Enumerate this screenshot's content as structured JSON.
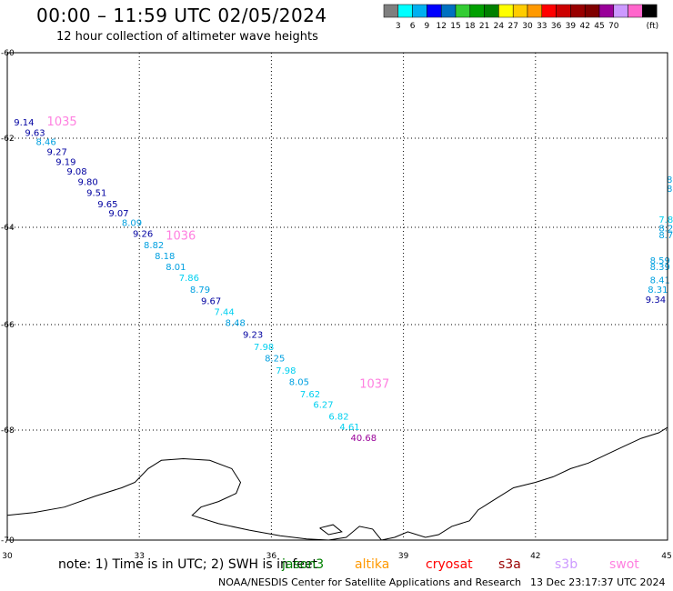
{
  "title": "00:00 – 11:59 UTC 02/05/2024",
  "subtitle": "12 hour collection of altimeter wave heights",
  "legend": {
    "colors": [
      "#7f7f7f",
      "#00ffff",
      "#00b0f0",
      "#0000ff",
      "#0070c0",
      "#33cc33",
      "#00a000",
      "#008000",
      "#ffff00",
      "#ffcc00",
      "#ff9900",
      "#ff0000",
      "#cc0000",
      "#990000",
      "#800000",
      "#990099",
      "#cc99ff",
      "#ff66cc",
      "#000000"
    ],
    "ticks": [
      "3",
      "6",
      "9",
      "12",
      "15",
      "18",
      "21",
      "24",
      "27",
      "30",
      "33",
      "36",
      "39",
      "42",
      "45",
      "70"
    ],
    "unit": "(ft)"
  },
  "axes": {
    "x_ticks": [
      "30",
      "33",
      "36",
      "39",
      "42",
      "45"
    ],
    "y_ticks": [
      "-60",
      "-62",
      "-64",
      "-66",
      "-68",
      "-70"
    ]
  },
  "map": {
    "lon_range": [
      30,
      45
    ],
    "lat_range": [
      -70,
      -60
    ],
    "y_ticks_lat": [
      -60,
      -62,
      -64,
      -66,
      -68,
      -70
    ],
    "x_ticks_lon": [
      30,
      33,
      36,
      39,
      42,
      45
    ]
  },
  "colors": {
    "darkblue": "#0000a0",
    "midblue": "#00a0e0",
    "cyan": "#00d0f0",
    "purple": "#990099",
    "pink": "#ff80e0"
  },
  "passes": [
    {
      "label": "1035",
      "lon": 30.9,
      "lat": -61.7
    },
    {
      "label": "1036",
      "lon": 33.6,
      "lat": -64.25
    },
    {
      "label": "1037",
      "lon": 38.0,
      "lat": -67.2
    }
  ],
  "wave_heights": [
    {
      "v": "9.14",
      "lon": 30.15,
      "lat": -61.7,
      "c": "darkblue"
    },
    {
      "v": "9.63",
      "lon": 30.4,
      "lat": -61.95,
      "c": "darkblue"
    },
    {
      "v": "8.46",
      "lon": 30.65,
      "lat": -62.15,
      "c": "midblue"
    },
    {
      "v": "9.27",
      "lon": 30.9,
      "lat": -62.38,
      "c": "darkblue"
    },
    {
      "v": "9.19",
      "lon": 31.1,
      "lat": -62.6,
      "c": "darkblue"
    },
    {
      "v": "9.08",
      "lon": 31.35,
      "lat": -62.82,
      "c": "darkblue"
    },
    {
      "v": "9.80",
      "lon": 31.6,
      "lat": -63.05,
      "c": "darkblue"
    },
    {
      "v": "9.51",
      "lon": 31.8,
      "lat": -63.3,
      "c": "darkblue"
    },
    {
      "v": "9.65",
      "lon": 32.05,
      "lat": -63.55,
      "c": "darkblue"
    },
    {
      "v": "9.07",
      "lon": 32.3,
      "lat": -63.75,
      "c": "darkblue"
    },
    {
      "v": "8.09",
      "lon": 32.6,
      "lat": -63.97,
      "c": "midblue"
    },
    {
      "v": "9.26",
      "lon": 32.85,
      "lat": -64.2,
      "c": "darkblue"
    },
    {
      "v": "8.82",
      "lon": 33.1,
      "lat": -64.43,
      "c": "midblue"
    },
    {
      "v": "8.18",
      "lon": 33.35,
      "lat": -64.65,
      "c": "midblue"
    },
    {
      "v": "8.01",
      "lon": 33.6,
      "lat": -64.88,
      "c": "midblue"
    },
    {
      "v": "7.86",
      "lon": 33.9,
      "lat": -65.1,
      "c": "cyan"
    },
    {
      "v": "8.79",
      "lon": 34.15,
      "lat": -65.35,
      "c": "midblue"
    },
    {
      "v": "9.67",
      "lon": 34.4,
      "lat": -65.58,
      "c": "darkblue"
    },
    {
      "v": "7.44",
      "lon": 34.7,
      "lat": -65.8,
      "c": "cyan"
    },
    {
      "v": "8.48",
      "lon": 34.95,
      "lat": -66.03,
      "c": "midblue"
    },
    {
      "v": "9.23",
      "lon": 35.35,
      "lat": -66.25,
      "c": "darkblue"
    },
    {
      "v": "7.98",
      "lon": 35.6,
      "lat": -66.48,
      "c": "cyan"
    },
    {
      "v": "8.25",
      "lon": 35.85,
      "lat": -66.7,
      "c": "midblue"
    },
    {
      "v": "7.98",
      "lon": 36.1,
      "lat": -66.93,
      "c": "cyan"
    },
    {
      "v": "8.05",
      "lon": 36.4,
      "lat": -67.15,
      "c": "midblue"
    },
    {
      "v": "7.62",
      "lon": 36.65,
      "lat": -67.38,
      "c": "cyan"
    },
    {
      "v": "6.27",
      "lon": 36.95,
      "lat": -67.58,
      "c": "cyan"
    },
    {
      "v": "6.82",
      "lon": 37.3,
      "lat": -67.8,
      "c": "cyan"
    },
    {
      "v": "4.61",
      "lon": 37.55,
      "lat": -68.0,
      "c": "cyan"
    },
    {
      "v": "40.68",
      "lon": 37.8,
      "lat": -68.2,
      "c": "purple"
    },
    {
      "v": "8",
      "lon": 44.98,
      "lat": -63.0,
      "c": "midblue"
    },
    {
      "v": "8",
      "lon": 44.98,
      "lat": -63.2,
      "c": "midblue"
    },
    {
      "v": "7.8",
      "lon": 44.8,
      "lat": -63.9,
      "c": "cyan"
    },
    {
      "v": "8.2",
      "lon": 44.8,
      "lat": -64.08,
      "c": "midblue"
    },
    {
      "v": "8.7",
      "lon": 44.8,
      "lat": -64.22,
      "c": "midblue"
    },
    {
      "v": "8.59",
      "lon": 44.6,
      "lat": -64.75,
      "c": "midblue"
    },
    {
      "v": "8.39",
      "lon": 44.6,
      "lat": -64.88,
      "c": "midblue"
    },
    {
      "v": "8.41",
      "lon": 44.6,
      "lat": -65.15,
      "c": "midblue"
    },
    {
      "v": "8.31",
      "lon": 44.55,
      "lat": -65.35,
      "c": "midblue"
    },
    {
      "v": "9.34",
      "lon": 44.5,
      "lat": -65.55,
      "c": "darkblue"
    }
  ],
  "coastline": [
    [
      30.0,
      -69.55
    ],
    [
      30.6,
      -69.5
    ],
    [
      31.3,
      -69.4
    ],
    [
      32.0,
      -69.2
    ],
    [
      32.6,
      -69.05
    ],
    [
      32.9,
      -68.95
    ],
    [
      33.2,
      -68.7
    ],
    [
      33.5,
      -68.55
    ],
    [
      34.0,
      -68.52
    ],
    [
      34.6,
      -68.55
    ],
    [
      35.1,
      -68.7
    ],
    [
      35.3,
      -68.95
    ],
    [
      35.2,
      -69.15
    ],
    [
      34.8,
      -69.3
    ],
    [
      34.4,
      -69.4
    ],
    [
      34.2,
      -69.55
    ],
    [
      34.8,
      -69.7
    ],
    [
      35.5,
      -69.82
    ],
    [
      36.2,
      -69.92
    ],
    [
      36.8,
      -69.98
    ],
    [
      37.3,
      -70.0
    ],
    [
      37.7,
      -69.95
    ],
    [
      38.0,
      -69.75
    ],
    [
      38.3,
      -69.8
    ],
    [
      38.5,
      -70.0
    ],
    [
      38.8,
      -69.95
    ],
    [
      39.1,
      -69.85
    ],
    [
      39.5,
      -69.95
    ],
    [
      39.8,
      -69.9
    ],
    [
      40.1,
      -69.75
    ],
    [
      40.5,
      -69.65
    ],
    [
      40.7,
      -69.45
    ],
    [
      41.0,
      -69.3
    ],
    [
      41.5,
      -69.05
    ],
    [
      42.0,
      -68.95
    ],
    [
      42.4,
      -68.85
    ],
    [
      42.8,
      -68.7
    ],
    [
      43.2,
      -68.6
    ],
    [
      43.6,
      -68.45
    ],
    [
      44.0,
      -68.3
    ],
    [
      44.4,
      -68.15
    ],
    [
      44.8,
      -68.05
    ],
    [
      45.0,
      -67.95
    ]
  ],
  "island": [
    [
      37.1,
      -69.78
    ],
    [
      37.4,
      -69.72
    ],
    [
      37.6,
      -69.85
    ],
    [
      37.3,
      -69.9
    ],
    [
      37.1,
      -69.78
    ]
  ],
  "note": "note:  1) Time is in UTC; 2) SWH is in feet",
  "satellites": [
    {
      "name": "jason3",
      "color": "#008000"
    },
    {
      "name": "altika",
      "color": "#ff9900"
    },
    {
      "name": "cryosat",
      "color": "#ff0000"
    },
    {
      "name": "s3a",
      "color": "#990000"
    },
    {
      "name": "s3b",
      "color": "#cc99ff"
    },
    {
      "name": "swot",
      "color": "#ff80e0"
    }
  ],
  "footer": "NOAA/NESDIS Center for Satellite Applications and Research",
  "timestamp": "13 Dec 23:17:37 UTC 2024"
}
